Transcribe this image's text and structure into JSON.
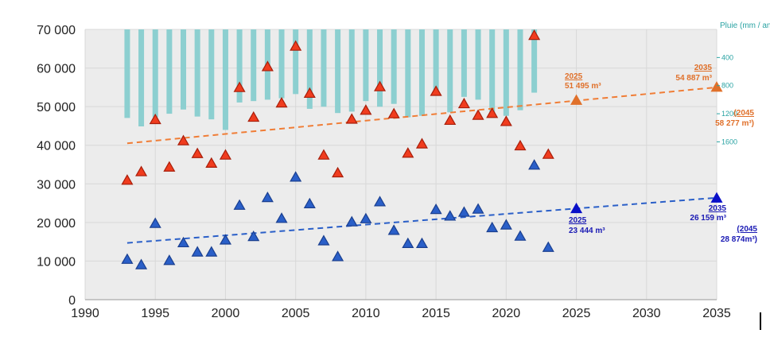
{
  "chart_data": {
    "type": "scatter",
    "xlim": [
      1990,
      2035
    ],
    "ylim": [
      0,
      70000
    ],
    "x_ticks": [
      "1990",
      "1995",
      "2000",
      "2005",
      "2010",
      "2015",
      "2020",
      "2025",
      "2030",
      "2035"
    ],
    "y_ticks": [
      "0",
      "10 000",
      "20 000",
      "30 000",
      "40 000",
      "50 000",
      "60 000",
      "70 000"
    ],
    "grid": true,
    "rain_axis": {
      "title": "Pluie (mm / an)",
      "ticks": [
        "400",
        "800",
        "1200",
        "1600"
      ],
      "max": 2000,
      "color": "#8ccfd0",
      "years": [
        1993,
        1994,
        1995,
        1996,
        1997,
        1998,
        1999,
        2000,
        2001,
        2002,
        2003,
        2004,
        2005,
        2006,
        2007,
        2008,
        2009,
        2010,
        2011,
        2012,
        2013,
        2014,
        2015,
        2016,
        2017,
        2018,
        2019,
        2020,
        2021,
        2022
      ],
      "values": [
        1260,
        1380,
        1250,
        1200,
        1140,
        1240,
        1280,
        1430,
        1040,
        1020,
        1000,
        980,
        920,
        1130,
        1100,
        1190,
        1170,
        1020,
        1100,
        1060,
        1250,
        1230,
        930,
        1180,
        960,
        1000,
        1180,
        1230,
        1150,
        900
      ]
    },
    "series": [
      {
        "color": "#f03c1e",
        "x": [
          1993,
          1994,
          1995,
          1996,
          1997,
          1998,
          1999,
          2000,
          2001,
          2002,
          2003,
          2004,
          2005,
          2006,
          2007,
          2008,
          2009,
          2010,
          2011,
          2012,
          2013,
          2014,
          2015,
          2016,
          2017,
          2018,
          2019,
          2020,
          2021,
          2022,
          2023,
          2025,
          2035
        ],
        "y": [
          30800,
          33000,
          46500,
          34200,
          41000,
          37700,
          35200,
          37300,
          54800,
          47100,
          60200,
          50800,
          65500,
          53300,
          37300,
          32700,
          46600,
          48900,
          55000,
          48000,
          37800,
          40200,
          53800,
          46300,
          50600,
          47600,
          48100,
          46000,
          39700,
          68300,
          37500,
          51495,
          54887
        ]
      },
      {
        "color": "#2a5fc8",
        "x": [
          1993,
          1994,
          1995,
          1996,
          1997,
          1998,
          1999,
          2000,
          2001,
          2002,
          2003,
          2004,
          2005,
          2006,
          2007,
          2008,
          2009,
          2010,
          2011,
          2012,
          2013,
          2014,
          2015,
          2016,
          2017,
          2018,
          2019,
          2020,
          2021,
          2022,
          2023,
          2025,
          2035
        ],
        "y": [
          10300,
          8900,
          19600,
          10000,
          14600,
          12200,
          12200,
          15300,
          24300,
          16200,
          26300,
          20900,
          31600,
          24700,
          15100,
          11000,
          20000,
          20800,
          25200,
          17800,
          14400,
          14400,
          23200,
          21500,
          22500,
          23300,
          18500,
          19200,
          16300,
          34700,
          13400,
          23444,
          26159
        ]
      }
    ],
    "trends": [
      {
        "color": "#f07d36",
        "x": [
          1993,
          2035
        ],
        "y": [
          40500,
          55000
        ]
      },
      {
        "color": "#2a5fc8",
        "x": [
          1993,
          2035
        ],
        "y": [
          14700,
          26400
        ]
      }
    ],
    "annotations": [
      {
        "year": "2025",
        "value": "51 495 m³",
        "color": "orange"
      },
      {
        "year": "2035",
        "value": "54 887 m³",
        "color": "orange"
      },
      {
        "year": "(2045",
        "value": "58 277 m³)",
        "color": "orange"
      },
      {
        "year": "2025",
        "value": "23 444 m³",
        "color": "blue"
      },
      {
        "year": "2035",
        "value": "26 159 m³",
        "color": "blue"
      },
      {
        "year": "(2045",
        "value": "28 874m³)",
        "color": "blue"
      }
    ]
  }
}
